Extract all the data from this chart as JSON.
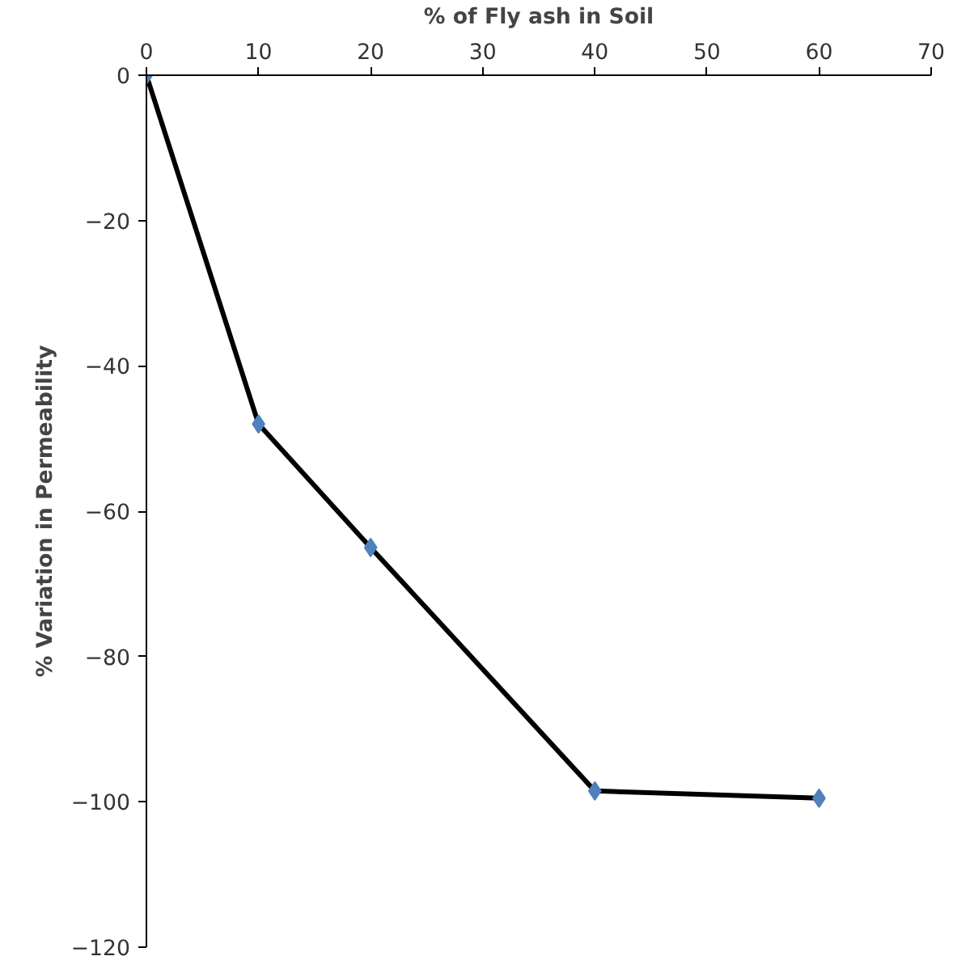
{
  "chart_data": {
    "type": "line",
    "xlabel": "% of Fly ash in Soil",
    "ylabel": "% Variation in Permeability",
    "x": [
      0,
      10,
      20,
      40,
      60
    ],
    "series": [
      {
        "color": "#000000",
        "colors": [
          "#4f81bd",
          "#4f81bd",
          "#4f81bd",
          "#4f81bd",
          "#4f81bd"
        ],
        "values": [
          0,
          -48,
          -65,
          -98.5,
          -99.5
        ]
      }
    ],
    "xlim": [
      0,
      70
    ],
    "xticks": [
      0,
      10,
      20,
      30,
      40,
      50,
      60,
      70
    ],
    "ylim": [
      -120,
      0
    ],
    "yticks": [
      0,
      -20,
      -40,
      -60,
      -80,
      -100,
      -120
    ],
    "marker": "diamond",
    "grid": false
  }
}
